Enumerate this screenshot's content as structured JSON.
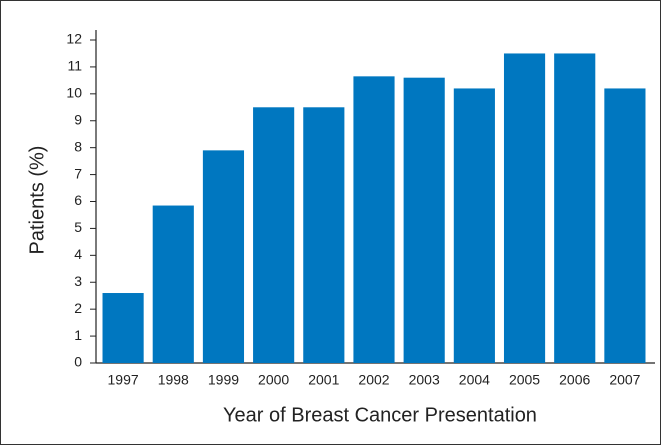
{
  "chart_data": {
    "type": "bar",
    "x_label": "Year of Breast Cancer Presentation",
    "y_label": "Patients (%)",
    "categories": [
      "1997",
      "1998",
      "1999",
      "2000",
      "2001",
      "2002",
      "2003",
      "2004",
      "2005",
      "2006",
      "2007"
    ],
    "values": [
      2.6,
      5.85,
      7.9,
      9.5,
      9.5,
      10.65,
      10.6,
      10.2,
      11.5,
      11.5,
      10.2
    ],
    "color": "#0077c0",
    "ylim": [
      0,
      12
    ],
    "yticks": [
      0,
      1,
      2,
      3,
      4,
      5,
      6,
      7,
      8,
      9,
      10,
      11,
      12
    ],
    "grid": false
  }
}
